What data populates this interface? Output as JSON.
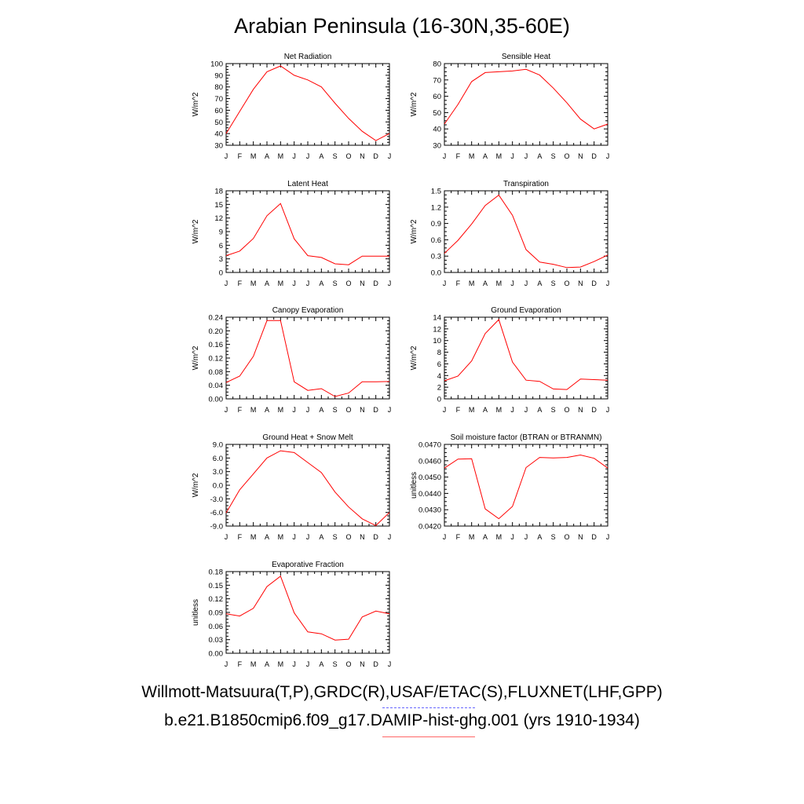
{
  "title": "Arabian Peninsula (16-30N,35-60E)",
  "legend": {
    "observations": "Willmott-Matsuura(T,P),GRDC(R),USAF/ETAC(S),FLUXNET(LHF,GPP)",
    "observations_color": "#6666ff",
    "model": "b.e21.B1850cmip6.f09_g17.DAMIP-hist-ghg.001 (yrs 1910-1934)",
    "model_color": "#ff6666"
  },
  "line_color": "#ff0000",
  "months": [
    "J",
    "F",
    "M",
    "A",
    "M",
    "J",
    "J",
    "A",
    "S",
    "O",
    "N",
    "D",
    "J"
  ],
  "chart_data": [
    {
      "type": "line",
      "title": "Net Radiation",
      "ylabel": "W/m^2",
      "ylim": [
        30,
        100
      ],
      "yticks": [
        "30",
        "40",
        "50",
        "60",
        "70",
        "80",
        "90",
        "100"
      ],
      "values": [
        40,
        59,
        78,
        93,
        98,
        90,
        86,
        80,
        66,
        53,
        42,
        34,
        40
      ]
    },
    {
      "type": "line",
      "title": "Sensible Heat",
      "ylabel": "W/m^2",
      "ylim": [
        30,
        80
      ],
      "yticks": [
        "30",
        "40",
        "50",
        "60",
        "70",
        "80"
      ],
      "values": [
        43,
        55,
        69,
        74.5,
        75,
        75.5,
        76.5,
        73,
        65,
        56,
        46,
        40,
        43
      ]
    },
    {
      "type": "line",
      "title": "Latent Heat",
      "ylabel": "W/m^2",
      "ylim": [
        0,
        18
      ],
      "yticks": [
        "0",
        "3",
        "6",
        "9",
        "12",
        "15",
        "18"
      ],
      "values": [
        3.7,
        4.7,
        7.5,
        12.5,
        15.2,
        7.4,
        3.7,
        3.3,
        1.9,
        1.7,
        3.6,
        3.6,
        3.6
      ]
    },
    {
      "type": "line",
      "title": "Transpiration",
      "ylabel": "W/m^2",
      "ylim": [
        0,
        1.5
      ],
      "yticks": [
        "0.0",
        "0.3",
        "0.6",
        "0.9",
        "1.2",
        "1.5"
      ],
      "values": [
        0.35,
        0.59,
        0.89,
        1.23,
        1.42,
        1.05,
        0.42,
        0.19,
        0.15,
        0.09,
        0.1,
        0.2,
        0.32
      ]
    },
    {
      "type": "line",
      "title": "Canopy Evaporation",
      "ylabel": "W/m^2",
      "ylim": [
        0,
        0.24
      ],
      "yticks": [
        "0.00",
        "0.04",
        "0.08",
        "0.12",
        "0.16",
        "0.20",
        "0.24"
      ],
      "values": [
        0.048,
        0.067,
        0.125,
        0.23,
        0.23,
        0.05,
        0.025,
        0.03,
        0.007,
        0.017,
        0.05,
        0.05,
        0.051
      ]
    },
    {
      "type": "line",
      "title": "Ground Evaporation",
      "ylabel": "W/m^2",
      "ylim": [
        0,
        14
      ],
      "yticks": [
        "0",
        "2",
        "4",
        "6",
        "8",
        "10",
        "12",
        "14"
      ],
      "values": [
        3.1,
        3.9,
        6.5,
        11.2,
        13.6,
        6.3,
        3.2,
        3.0,
        1.7,
        1.6,
        3.4,
        3.3,
        3.2
      ]
    },
    {
      "type": "line",
      "title": "Ground Heat + Snow Melt",
      "ylabel": "W/m^2",
      "ylim": [
        -9,
        9
      ],
      "yticks": [
        "-9.0",
        "-6.0",
        "-3.0",
        "0.0",
        "3.0",
        "6.0",
        "9.0"
      ],
      "values": [
        -6.1,
        -1.0,
        2.5,
        6.0,
        7.6,
        7.2,
        5.0,
        2.8,
        -1.5,
        -4.8,
        -7.4,
        -8.9,
        -6.0
      ]
    },
    {
      "type": "line",
      "title": "Soil moisture factor (BTRAN or BTRANMN)",
      "ylabel": "unitless",
      "ylim": [
        0.042,
        0.047
      ],
      "yticks": [
        "0.0420",
        "0.0430",
        "0.0440",
        "0.0450",
        "0.0460",
        "0.0470"
      ],
      "values": [
        0.04555,
        0.0461,
        0.04612,
        0.04305,
        0.04245,
        0.0432,
        0.04558,
        0.0462,
        0.04617,
        0.0462,
        0.04635,
        0.04615,
        0.04555
      ]
    },
    {
      "type": "line",
      "title": "Evaporative Fraction",
      "ylabel": "unitless",
      "ylim": [
        0,
        0.18
      ],
      "yticks": [
        "0.00",
        "0.03",
        "0.06",
        "0.09",
        "0.12",
        "0.15",
        "0.18"
      ],
      "values": [
        0.087,
        0.082,
        0.099,
        0.147,
        0.17,
        0.089,
        0.047,
        0.043,
        0.029,
        0.031,
        0.08,
        0.093,
        0.087
      ]
    }
  ]
}
